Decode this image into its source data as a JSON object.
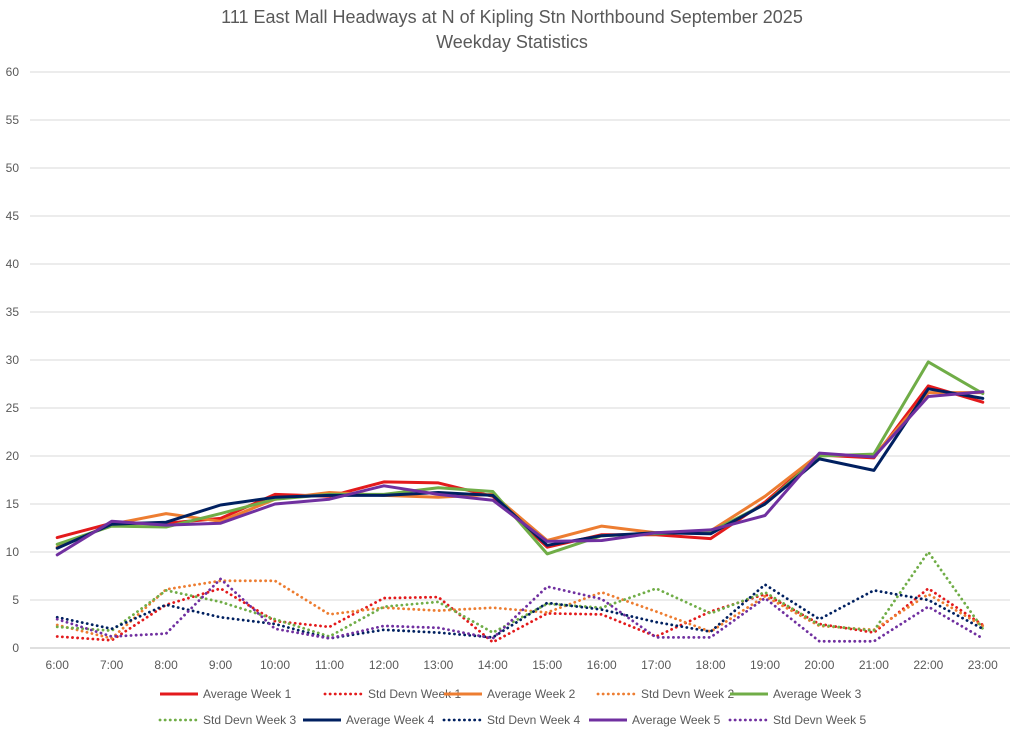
{
  "chart_data": {
    "type": "line",
    "title": "111 East Mall Headways at N of Kipling Stn Northbound September 2025",
    "subtitle": "Weekday Statistics",
    "xlabel": "",
    "ylabel": "",
    "ylim": [
      0,
      60
    ],
    "yticks": [
      "0",
      "5",
      "10",
      "15",
      "20",
      "25",
      "30",
      "35",
      "40",
      "45",
      "50",
      "55",
      "60"
    ],
    "grid": "horizontal",
    "legend_position": "bottom",
    "categories": [
      "6:00",
      "7:00",
      "8:00",
      "9:00",
      "10:00",
      "11:00",
      "12:00",
      "13:00",
      "14:00",
      "15:00",
      "16:00",
      "17:00",
      "18:00",
      "19:00",
      "20:00",
      "21:00",
      "22:00",
      "23:00"
    ],
    "series": [
      {
        "name": "Average Week 1",
        "color": "#e31a1c",
        "style": "solid",
        "values": [
          11.5,
          13,
          13,
          13.5,
          16,
          15.8,
          17.3,
          17.2,
          15.8,
          10.5,
          11.8,
          11.8,
          11.4,
          15.2,
          20.1,
          19.8,
          27.3,
          25.6
        ]
      },
      {
        "name": "Std Devn Week 1",
        "color": "#e31a1c",
        "style": "dotted",
        "values": [
          1.2,
          0.8,
          4.5,
          6.2,
          2.8,
          2.2,
          5.2,
          5.3,
          0.6,
          3.6,
          3.5,
          1.2,
          3.8,
          5.6,
          2.5,
          1.6,
          6.2,
          2.4
        ]
      },
      {
        "name": "Average Week 2",
        "color": "#ed7d31",
        "style": "solid",
        "values": [
          10.5,
          12.9,
          14,
          13.2,
          15.5,
          16.2,
          15.9,
          15.7,
          16,
          11.2,
          12.7,
          12,
          12.2,
          15.8,
          20.2,
          20,
          26.6,
          26.6
        ]
      },
      {
        "name": "Std Devn Week 2",
        "color": "#ed7d31",
        "style": "dotted",
        "values": [
          2.4,
          1,
          6.1,
          7,
          7,
          3.5,
          4.2,
          3.9,
          4.2,
          3.7,
          5.8,
          3.8,
          1.7,
          5.4,
          2.3,
          1.9,
          5.6,
          2.3
        ]
      },
      {
        "name": "Average Week 3",
        "color": "#70ad47",
        "style": "solid",
        "values": [
          10.8,
          12.7,
          12.6,
          14,
          15.5,
          16,
          16,
          16.7,
          16.3,
          9.8,
          11.7,
          11.9,
          12.1,
          15,
          20,
          20.2,
          29.8,
          26.5
        ]
      },
      {
        "name": "Std Devn Week 3",
        "color": "#70ad47",
        "style": "dotted",
        "values": [
          2.2,
          1.8,
          6,
          4.8,
          3,
          1.2,
          4.3,
          4.8,
          1.6,
          4.6,
          4.2,
          6.2,
          3.6,
          5.8,
          2.4,
          1.8,
          10,
          2
        ]
      },
      {
        "name": "Average Week 4",
        "color": "#002060",
        "style": "solid",
        "values": [
          10.4,
          12.9,
          13.1,
          14.9,
          15.7,
          15.9,
          15.9,
          16.2,
          15.9,
          10.7,
          11.7,
          12,
          11.9,
          15,
          19.7,
          18.5,
          27,
          26
        ]
      },
      {
        "name": "Std Devn Week 4",
        "color": "#002060",
        "style": "dotted",
        "values": [
          3.2,
          2,
          4.5,
          3.2,
          2.5,
          1,
          1.9,
          1.6,
          1.1,
          4.7,
          4,
          2.7,
          1.7,
          6.6,
          3,
          6,
          5,
          2
        ]
      },
      {
        "name": "Average Week 5",
        "color": "#7030a0",
        "style": "solid",
        "values": [
          9.7,
          13.2,
          12.8,
          13,
          15,
          15.5,
          16.9,
          16,
          15.4,
          11.1,
          11.2,
          12,
          12.3,
          13.8,
          20.3,
          19.9,
          26.2,
          26.7
        ]
      },
      {
        "name": "Std Devn Week 5",
        "color": "#7030a0",
        "style": "dotted",
        "values": [
          3,
          1.2,
          1.5,
          7.2,
          2,
          1,
          2.3,
          2.1,
          1,
          6.4,
          5.1,
          1.1,
          1.1,
          5.2,
          0.7,
          0.7,
          4.3,
          1
        ]
      }
    ]
  }
}
